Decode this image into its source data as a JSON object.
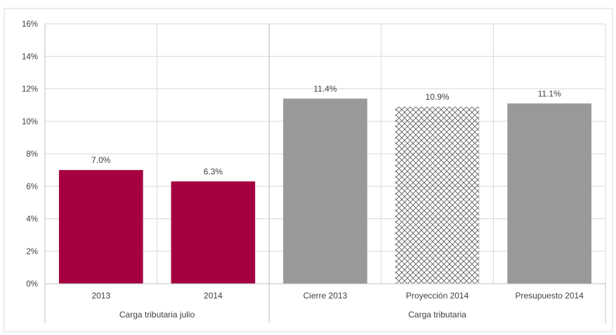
{
  "chart_data": {
    "type": "bar",
    "categories": [
      "2013",
      "2014",
      "Cierre 2013",
      "Proyección 2014",
      "Presupuesto 2014"
    ],
    "values": [
      7.0,
      6.3,
      11.4,
      10.9,
      11.1
    ],
    "value_labels": [
      "7.0%",
      "6.3%",
      "11.4%",
      "10.9%",
      "11.1%"
    ],
    "groups": [
      {
        "label": "Carga tributaria julio",
        "categories": [
          "2013",
          "2014"
        ]
      },
      {
        "label": "Carga tributaria",
        "categories": [
          "Cierre 2013",
          "Proyección 2014",
          "Presupuesto 2014"
        ]
      }
    ],
    "bar_styles": [
      "solid",
      "solid",
      "solid",
      "crosshatch",
      "solid"
    ],
    "bar_colors": [
      "#a50040",
      "#a50040",
      "#999999",
      "#808080",
      "#999999"
    ],
    "ylim": [
      0,
      16
    ],
    "yticks": [
      0,
      2,
      4,
      6,
      8,
      10,
      12,
      14,
      16
    ],
    "ytick_labels": [
      "0%",
      "2%",
      "4%",
      "6%",
      "8%",
      "10%",
      "12%",
      "14%",
      "16%"
    ],
    "grid": true,
    "title": "",
    "xlabel": "",
    "ylabel": ""
  }
}
